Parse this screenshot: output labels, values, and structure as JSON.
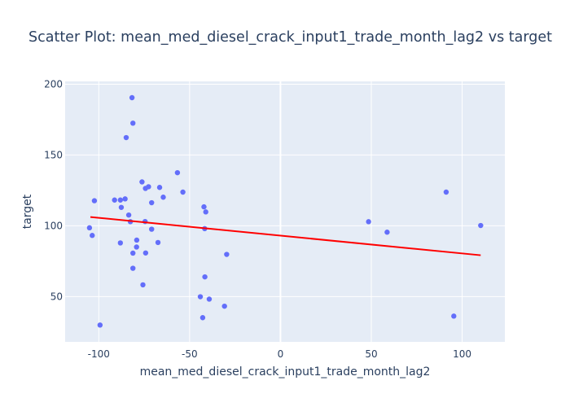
{
  "chart_data": {
    "type": "scatter",
    "title": "Scatter Plot: mean_med_diesel_crack_input1_trade_month_lag2 vs target",
    "xlabel": "mean_med_diesel_crack_input1_trade_month_lag2",
    "ylabel": "target",
    "xlim": [
      -118.5,
      123.5
    ],
    "ylim": [
      18,
      202
    ],
    "xticks": [
      -100,
      -50,
      0,
      50,
      100
    ],
    "yticks": [
      50,
      100,
      150,
      200
    ],
    "grid": true,
    "background": "#e5ecf6",
    "marker_color": "#636efa",
    "trendline_color": "#ff0000",
    "points": [
      [
        -81.7,
        190.5
      ],
      [
        -81.2,
        172.5
      ],
      [
        -84.9,
        162.3
      ],
      [
        -56.7,
        137.5
      ],
      [
        -76.2,
        131.0
      ],
      [
        -72.6,
        127.6
      ],
      [
        -66.5,
        127.1
      ],
      [
        -74.3,
        126.4
      ],
      [
        -53.7,
        123.8
      ],
      [
        -64.5,
        120.2
      ],
      [
        -85.5,
        119.0
      ],
      [
        -88.1,
        118.2
      ],
      [
        -102.4,
        117.7
      ],
      [
        -91.3,
        118.2
      ],
      [
        -70.9,
        116.3
      ],
      [
        -87.6,
        113.0
      ],
      [
        -42.1,
        113.4
      ],
      [
        -41.1,
        109.8
      ],
      [
        -83.5,
        107.6
      ],
      [
        -82.6,
        102.9
      ],
      [
        -74.5,
        103.0
      ],
      [
        -105.1,
        98.6
      ],
      [
        -70.9,
        97.6
      ],
      [
        -41.7,
        98.0
      ],
      [
        -103.6,
        93.2
      ],
      [
        -79.1,
        89.9
      ],
      [
        -88.1,
        87.9
      ],
      [
        -67.4,
        88.2
      ],
      [
        -74.2,
        80.8
      ],
      [
        -81.2,
        80.7
      ],
      [
        -29.6,
        79.8
      ],
      [
        -81.2,
        70.0
      ],
      [
        -79.2,
        85.0
      ],
      [
        -41.6,
        63.9
      ],
      [
        -75.7,
        58.3
      ],
      [
        -44.1,
        49.9
      ],
      [
        -39.2,
        48.2
      ],
      [
        -30.8,
        43.2
      ],
      [
        -42.8,
        35.1
      ],
      [
        -99.3,
        29.9
      ],
      [
        48.5,
        102.9
      ],
      [
        58.7,
        95.5
      ],
      [
        91.2,
        123.8
      ],
      [
        95.4,
        36.2
      ],
      [
        110.2,
        100.2
      ]
    ],
    "trendline": [
      [
        -104.6,
        106.2
      ],
      [
        110.2,
        79.2
      ]
    ]
  }
}
